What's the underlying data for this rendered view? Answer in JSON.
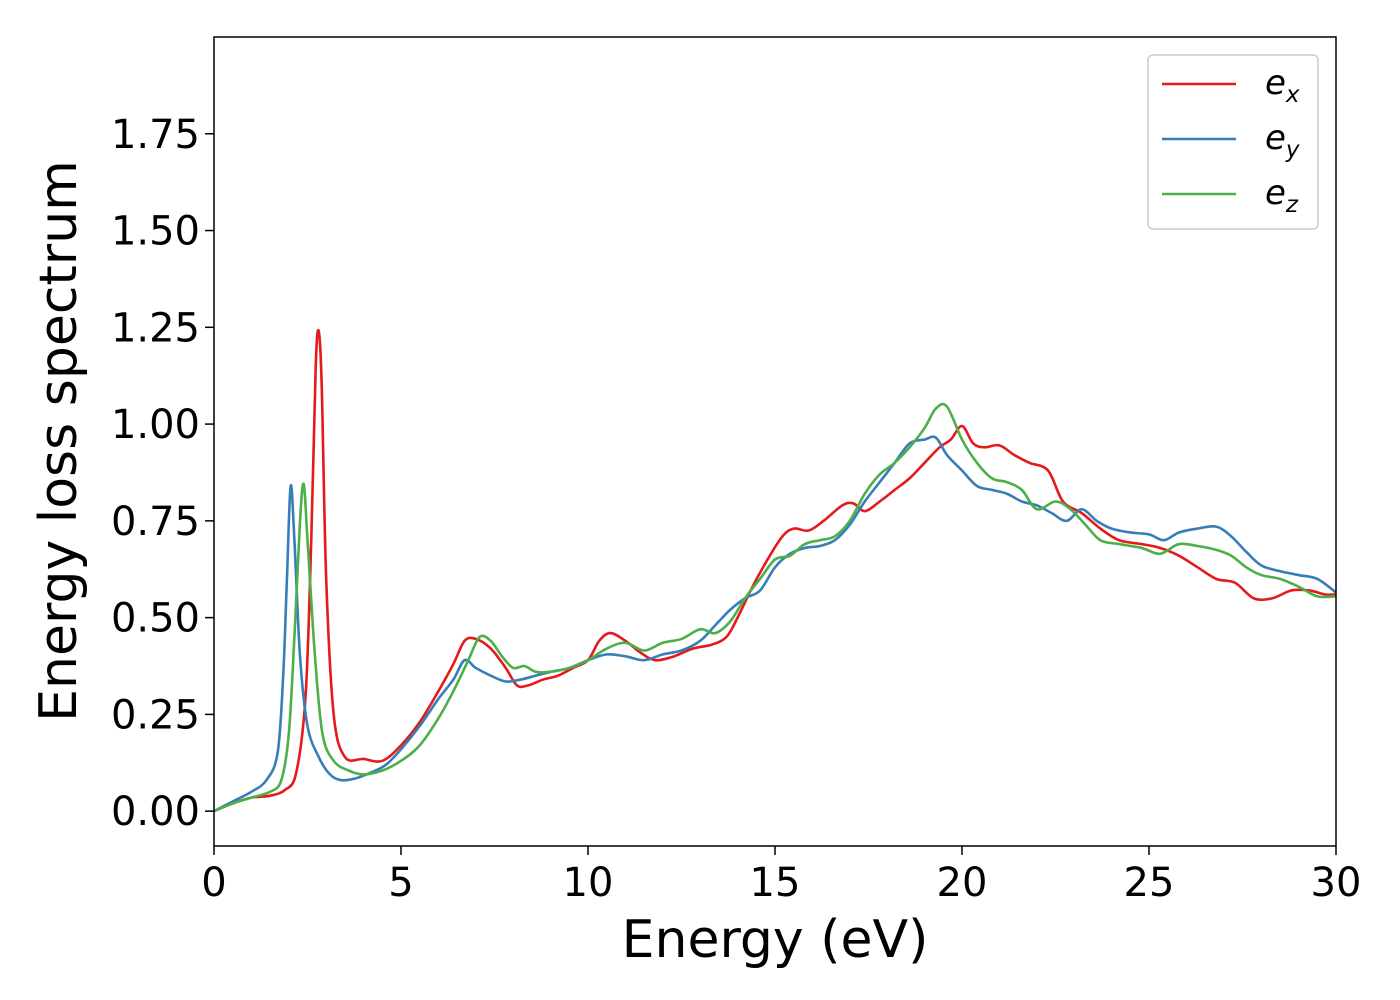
{
  "chart_data": {
    "type": "line",
    "xlabel": "Energy (eV)",
    "ylabel": "Energy loss spectrum",
    "xlim": [
      0,
      30
    ],
    "ylim": [
      -0.09,
      2.0
    ],
    "xticks": [
      0,
      5,
      10,
      15,
      20,
      25,
      30
    ],
    "xtick_labels": [
      "0",
      "5",
      "10",
      "15",
      "20",
      "25",
      "30"
    ],
    "yticks": [
      0.0,
      0.25,
      0.5,
      0.75,
      1.0,
      1.25,
      1.5,
      1.75
    ],
    "ytick_labels": [
      "0.00",
      "0.25",
      "0.50",
      "0.75",
      "1.00",
      "1.25",
      "1.50",
      "1.75"
    ],
    "grid": false,
    "legend_position": "top-right",
    "series": [
      {
        "name": "e",
        "name_sub": "x",
        "color": "#e41a1c",
        "points": [
          [
            0,
            0
          ],
          [
            0.5,
            0.02
          ],
          [
            1,
            0.035
          ],
          [
            1.5,
            0.04
          ],
          [
            1.9,
            0.055
          ],
          [
            2.2,
            0.1
          ],
          [
            2.45,
            0.3
          ],
          [
            2.6,
            0.7
          ],
          [
            2.72,
            1.15
          ],
          [
            2.8,
            1.24
          ],
          [
            2.88,
            1.1
          ],
          [
            3.0,
            0.6
          ],
          [
            3.2,
            0.25
          ],
          [
            3.5,
            0.14
          ],
          [
            4,
            0.135
          ],
          [
            4.5,
            0.13
          ],
          [
            5,
            0.17
          ],
          [
            5.5,
            0.23
          ],
          [
            6,
            0.31
          ],
          [
            6.4,
            0.38
          ],
          [
            6.7,
            0.44
          ],
          [
            7.0,
            0.445
          ],
          [
            7.4,
            0.42
          ],
          [
            7.8,
            0.37
          ],
          [
            8.1,
            0.325
          ],
          [
            8.4,
            0.325
          ],
          [
            8.8,
            0.34
          ],
          [
            9.2,
            0.35
          ],
          [
            9.6,
            0.37
          ],
          [
            10,
            0.39
          ],
          [
            10.3,
            0.44
          ],
          [
            10.6,
            0.46
          ],
          [
            11,
            0.44
          ],
          [
            11.4,
            0.41
          ],
          [
            11.8,
            0.39
          ],
          [
            12.3,
            0.4
          ],
          [
            12.8,
            0.42
          ],
          [
            13.3,
            0.43
          ],
          [
            13.7,
            0.45
          ],
          [
            14,
            0.5
          ],
          [
            14.4,
            0.58
          ],
          [
            14.8,
            0.65
          ],
          [
            15.2,
            0.71
          ],
          [
            15.5,
            0.73
          ],
          [
            15.9,
            0.725
          ],
          [
            16.3,
            0.75
          ],
          [
            16.8,
            0.79
          ],
          [
            17.1,
            0.795
          ],
          [
            17.4,
            0.775
          ],
          [
            17.8,
            0.8
          ],
          [
            18.2,
            0.83
          ],
          [
            18.6,
            0.86
          ],
          [
            19,
            0.9
          ],
          [
            19.4,
            0.94
          ],
          [
            19.7,
            0.96
          ],
          [
            20,
            0.995
          ],
          [
            20.3,
            0.95
          ],
          [
            20.6,
            0.94
          ],
          [
            21,
            0.945
          ],
          [
            21.4,
            0.92
          ],
          [
            21.8,
            0.9
          ],
          [
            22.3,
            0.88
          ],
          [
            22.7,
            0.8
          ],
          [
            23.2,
            0.77
          ],
          [
            23.7,
            0.73
          ],
          [
            24.2,
            0.7
          ],
          [
            24.8,
            0.69
          ],
          [
            25.3,
            0.68
          ],
          [
            25.8,
            0.66
          ],
          [
            26.3,
            0.63
          ],
          [
            26.8,
            0.6
          ],
          [
            27.3,
            0.59
          ],
          [
            27.8,
            0.55
          ],
          [
            28.3,
            0.55
          ],
          [
            28.8,
            0.57
          ],
          [
            29.3,
            0.57
          ],
          [
            29.7,
            0.56
          ],
          [
            30,
            0.56
          ]
        ]
      },
      {
        "name": "e",
        "name_sub": "y",
        "color": "#377eb8",
        "points": [
          [
            0,
            0
          ],
          [
            0.5,
            0.025
          ],
          [
            1,
            0.05
          ],
          [
            1.4,
            0.08
          ],
          [
            1.7,
            0.15
          ],
          [
            1.85,
            0.35
          ],
          [
            1.95,
            0.6
          ],
          [
            2.05,
            0.84
          ],
          [
            2.15,
            0.7
          ],
          [
            2.3,
            0.4
          ],
          [
            2.5,
            0.22
          ],
          [
            2.8,
            0.14
          ],
          [
            3.1,
            0.095
          ],
          [
            3.4,
            0.08
          ],
          [
            3.8,
            0.085
          ],
          [
            4.2,
            0.1
          ],
          [
            4.6,
            0.12
          ],
          [
            5,
            0.16
          ],
          [
            5.5,
            0.22
          ],
          [
            6,
            0.29
          ],
          [
            6.4,
            0.34
          ],
          [
            6.7,
            0.39
          ],
          [
            7.0,
            0.37
          ],
          [
            7.4,
            0.35
          ],
          [
            7.8,
            0.335
          ],
          [
            8.2,
            0.34
          ],
          [
            8.6,
            0.35
          ],
          [
            9,
            0.36
          ],
          [
            9.5,
            0.37
          ],
          [
            10,
            0.39
          ],
          [
            10.5,
            0.405
          ],
          [
            11,
            0.4
          ],
          [
            11.5,
            0.39
          ],
          [
            12,
            0.405
          ],
          [
            12.5,
            0.415
          ],
          [
            13,
            0.44
          ],
          [
            13.4,
            0.48
          ],
          [
            13.8,
            0.52
          ],
          [
            14.2,
            0.55
          ],
          [
            14.6,
            0.57
          ],
          [
            15,
            0.63
          ],
          [
            15.4,
            0.665
          ],
          [
            15.8,
            0.68
          ],
          [
            16.2,
            0.685
          ],
          [
            16.6,
            0.7
          ],
          [
            17,
            0.74
          ],
          [
            17.4,
            0.8
          ],
          [
            17.8,
            0.85
          ],
          [
            18.2,
            0.9
          ],
          [
            18.6,
            0.95
          ],
          [
            19,
            0.96
          ],
          [
            19.3,
            0.965
          ],
          [
            19.6,
            0.92
          ],
          [
            20,
            0.88
          ],
          [
            20.4,
            0.84
          ],
          [
            20.8,
            0.83
          ],
          [
            21.2,
            0.82
          ],
          [
            21.6,
            0.8
          ],
          [
            22,
            0.79
          ],
          [
            22.4,
            0.77
          ],
          [
            22.8,
            0.75
          ],
          [
            23.2,
            0.78
          ],
          [
            23.6,
            0.75
          ],
          [
            24,
            0.73
          ],
          [
            24.5,
            0.72
          ],
          [
            25,
            0.715
          ],
          [
            25.4,
            0.7
          ],
          [
            25.8,
            0.72
          ],
          [
            26.3,
            0.73
          ],
          [
            26.8,
            0.735
          ],
          [
            27.2,
            0.71
          ],
          [
            27.6,
            0.67
          ],
          [
            28,
            0.635
          ],
          [
            28.5,
            0.62
          ],
          [
            29,
            0.61
          ],
          [
            29.5,
            0.6
          ],
          [
            30,
            0.565
          ]
        ]
      },
      {
        "name": "e",
        "name_sub": "z",
        "color": "#4daf4a",
        "points": [
          [
            0,
            0
          ],
          [
            0.5,
            0.02
          ],
          [
            1,
            0.035
          ],
          [
            1.5,
            0.05
          ],
          [
            1.8,
            0.08
          ],
          [
            2.0,
            0.2
          ],
          [
            2.15,
            0.45
          ],
          [
            2.3,
            0.75
          ],
          [
            2.4,
            0.845
          ],
          [
            2.5,
            0.7
          ],
          [
            2.7,
            0.4
          ],
          [
            2.9,
            0.2
          ],
          [
            3.2,
            0.13
          ],
          [
            3.6,
            0.105
          ],
          [
            4,
            0.095
          ],
          [
            4.5,
            0.105
          ],
          [
            5,
            0.13
          ],
          [
            5.5,
            0.17
          ],
          [
            6,
            0.24
          ],
          [
            6.4,
            0.31
          ],
          [
            6.8,
            0.39
          ],
          [
            7.1,
            0.45
          ],
          [
            7.4,
            0.44
          ],
          [
            7.7,
            0.4
          ],
          [
            8.0,
            0.37
          ],
          [
            8.3,
            0.375
          ],
          [
            8.6,
            0.36
          ],
          [
            9,
            0.36
          ],
          [
            9.5,
            0.37
          ],
          [
            10,
            0.39
          ],
          [
            10.5,
            0.42
          ],
          [
            11,
            0.435
          ],
          [
            11.5,
            0.415
          ],
          [
            12,
            0.435
          ],
          [
            12.5,
            0.445
          ],
          [
            13,
            0.47
          ],
          [
            13.4,
            0.46
          ],
          [
            13.8,
            0.49
          ],
          [
            14.2,
            0.55
          ],
          [
            14.6,
            0.6
          ],
          [
            15,
            0.65
          ],
          [
            15.4,
            0.66
          ],
          [
            15.8,
            0.69
          ],
          [
            16.2,
            0.7
          ],
          [
            16.6,
            0.71
          ],
          [
            17,
            0.75
          ],
          [
            17.4,
            0.82
          ],
          [
            17.8,
            0.87
          ],
          [
            18.2,
            0.9
          ],
          [
            18.6,
            0.94
          ],
          [
            19,
            0.99
          ],
          [
            19.3,
            1.04
          ],
          [
            19.6,
            1.045
          ],
          [
            20,
            0.96
          ],
          [
            20.4,
            0.9
          ],
          [
            20.8,
            0.86
          ],
          [
            21.2,
            0.85
          ],
          [
            21.6,
            0.83
          ],
          [
            22,
            0.78
          ],
          [
            22.5,
            0.8
          ],
          [
            22.9,
            0.78
          ],
          [
            23.3,
            0.74
          ],
          [
            23.7,
            0.7
          ],
          [
            24.2,
            0.69
          ],
          [
            24.8,
            0.68
          ],
          [
            25.3,
            0.665
          ],
          [
            25.8,
            0.69
          ],
          [
            26.3,
            0.685
          ],
          [
            26.8,
            0.675
          ],
          [
            27.2,
            0.66
          ],
          [
            27.6,
            0.63
          ],
          [
            28,
            0.61
          ],
          [
            28.5,
            0.6
          ],
          [
            29,
            0.58
          ],
          [
            29.5,
            0.555
          ],
          [
            30,
            0.555
          ]
        ]
      }
    ]
  }
}
